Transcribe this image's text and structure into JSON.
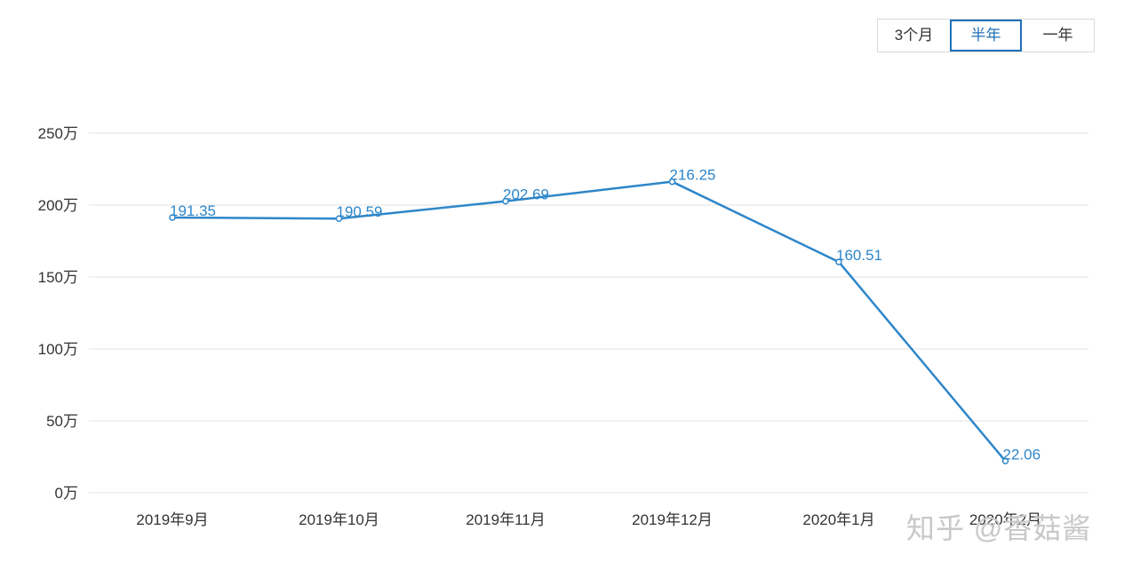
{
  "range_toggle": {
    "options": [
      "3个月",
      "半年",
      "一年"
    ],
    "selected": "半年"
  },
  "watermark": "知乎 @香菇酱",
  "chart_data": {
    "type": "line",
    "categories": [
      "2019年9月",
      "2019年10月",
      "2019年11月",
      "2019年12月",
      "2020年1月",
      "2020年2月"
    ],
    "series": [
      {
        "values": [
          191.35,
          190.59,
          202.69,
          216.25,
          160.51,
          22.06
        ]
      }
    ],
    "data_labels": [
      "191.35",
      "190.59",
      "202.69",
      "216.25",
      "160.51",
      "22.06"
    ],
    "ylim": [
      0,
      250
    ],
    "yticks": [
      0,
      50,
      100,
      150,
      200,
      250
    ],
    "ytick_labels": [
      "0万",
      "50万",
      "100万",
      "150万",
      "200万",
      "250万"
    ],
    "grid": true,
    "line_color": "#2e86c9"
  }
}
